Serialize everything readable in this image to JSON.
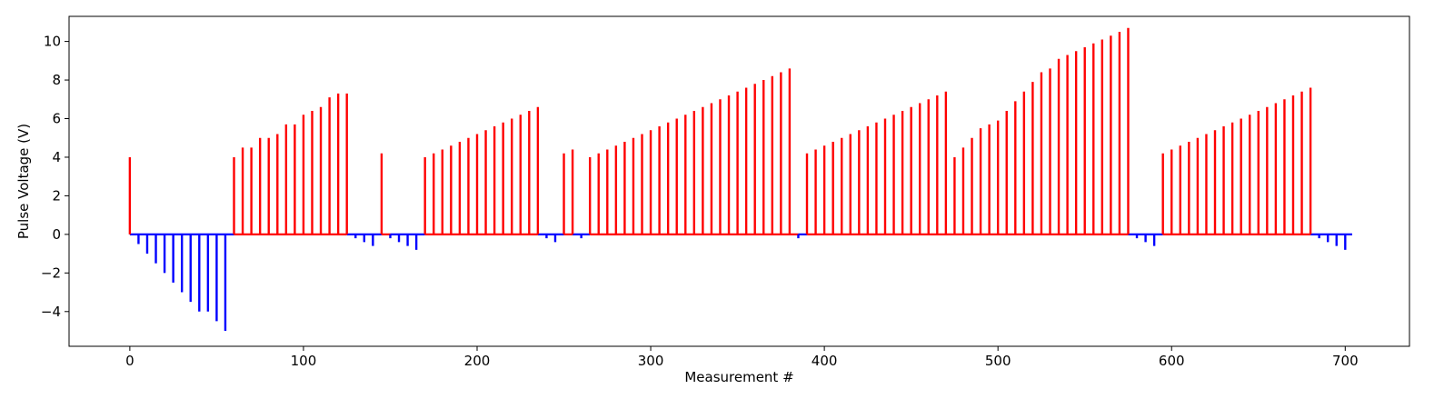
{
  "chart_data": {
    "type": "bar",
    "xlabel": "Measurement #",
    "ylabel": "Pulse Voltage (V)",
    "xlim": [
      -35,
      737
    ],
    "ylim": [
      -5.8,
      11.3
    ],
    "x_ticks": [
      0,
      100,
      200,
      300,
      400,
      500,
      600,
      700
    ],
    "y_ticks": [
      -4,
      -2,
      0,
      2,
      4,
      6,
      8,
      10
    ],
    "grid": false,
    "legend": "none",
    "colors": {
      "positive": "#ff0000",
      "negative": "#0000ff"
    },
    "series": [
      {
        "color": "#0000ff",
        "points": [
          [
            5,
            -0.5
          ],
          [
            10,
            -1.0
          ],
          [
            15,
            -1.5
          ],
          [
            20,
            -2.0
          ],
          [
            25,
            -2.5
          ],
          [
            30,
            -3.0
          ],
          [
            35,
            -3.5
          ],
          [
            40,
            -4.0
          ],
          [
            45,
            -4.0
          ],
          [
            50,
            -4.5
          ],
          [
            55,
            -5.0
          ],
          [
            130,
            -0.2
          ],
          [
            135,
            -0.4
          ],
          [
            140,
            -0.6
          ],
          [
            150,
            -0.2
          ],
          [
            155,
            -0.4
          ],
          [
            160,
            -0.6
          ],
          [
            165,
            -0.8
          ],
          [
            240,
            -0.2
          ],
          [
            245,
            -0.4
          ],
          [
            260,
            -0.2
          ],
          [
            385,
            -0.2
          ],
          [
            580,
            -0.2
          ],
          [
            585,
            -0.4
          ],
          [
            590,
            -0.6
          ],
          [
            685,
            -0.2
          ],
          [
            690,
            -0.4
          ],
          [
            695,
            -0.6
          ],
          [
            700,
            -0.8
          ]
        ]
      },
      {
        "color": "#ff0000",
        "points": [
          [
            0,
            4.0
          ],
          [
            60,
            4.0
          ],
          [
            65,
            4.5
          ],
          [
            70,
            4.5
          ],
          [
            75,
            5.0
          ],
          [
            80,
            5.0
          ],
          [
            85,
            5.2
          ],
          [
            90,
            5.7
          ],
          [
            95,
            5.7
          ],
          [
            100,
            6.2
          ],
          [
            105,
            6.4
          ],
          [
            110,
            6.6
          ],
          [
            115,
            7.1
          ],
          [
            120,
            7.3
          ],
          [
            125,
            7.3
          ],
          [
            145,
            4.2
          ],
          [
            170,
            4.0
          ],
          [
            175,
            4.2
          ],
          [
            180,
            4.4
          ],
          [
            185,
            4.6
          ],
          [
            190,
            4.8
          ],
          [
            195,
            5.0
          ],
          [
            200,
            5.2
          ],
          [
            205,
            5.4
          ],
          [
            210,
            5.6
          ],
          [
            215,
            5.8
          ],
          [
            220,
            6.0
          ],
          [
            225,
            6.2
          ],
          [
            230,
            6.4
          ],
          [
            235,
            6.6
          ],
          [
            250,
            4.2
          ],
          [
            255,
            4.4
          ],
          [
            265,
            4.0
          ],
          [
            270,
            4.2
          ],
          [
            275,
            4.4
          ],
          [
            280,
            4.6
          ],
          [
            285,
            4.8
          ],
          [
            290,
            5.0
          ],
          [
            295,
            5.2
          ],
          [
            300,
            5.4
          ],
          [
            305,
            5.6
          ],
          [
            310,
            5.8
          ],
          [
            315,
            6.0
          ],
          [
            320,
            6.2
          ],
          [
            325,
            6.4
          ],
          [
            330,
            6.6
          ],
          [
            335,
            6.8
          ],
          [
            340,
            7.0
          ],
          [
            345,
            7.2
          ],
          [
            350,
            7.4
          ],
          [
            355,
            7.6
          ],
          [
            360,
            7.8
          ],
          [
            365,
            8.0
          ],
          [
            370,
            8.2
          ],
          [
            375,
            8.4
          ],
          [
            380,
            8.6
          ],
          [
            390,
            4.2
          ],
          [
            395,
            4.4
          ],
          [
            400,
            4.6
          ],
          [
            405,
            4.8
          ],
          [
            410,
            5.0
          ],
          [
            415,
            5.2
          ],
          [
            420,
            5.4
          ],
          [
            425,
            5.6
          ],
          [
            430,
            5.8
          ],
          [
            435,
            6.0
          ],
          [
            440,
            6.2
          ],
          [
            445,
            6.4
          ],
          [
            450,
            6.6
          ],
          [
            455,
            6.8
          ],
          [
            460,
            7.0
          ],
          [
            465,
            7.2
          ],
          [
            470,
            7.4
          ],
          [
            475,
            4.0
          ],
          [
            480,
            4.5
          ],
          [
            485,
            5.0
          ],
          [
            490,
            5.5
          ],
          [
            495,
            5.7
          ],
          [
            500,
            5.9
          ],
          [
            505,
            6.4
          ],
          [
            510,
            6.9
          ],
          [
            515,
            7.4
          ],
          [
            520,
            7.9
          ],
          [
            525,
            8.4
          ],
          [
            530,
            8.6
          ],
          [
            535,
            9.1
          ],
          [
            540,
            9.3
          ],
          [
            545,
            9.5
          ],
          [
            550,
            9.7
          ],
          [
            555,
            9.9
          ],
          [
            560,
            10.1
          ],
          [
            565,
            10.3
          ],
          [
            570,
            10.5
          ],
          [
            575,
            10.7
          ],
          [
            595,
            4.2
          ],
          [
            600,
            4.4
          ],
          [
            605,
            4.6
          ],
          [
            610,
            4.8
          ],
          [
            615,
            5.0
          ],
          [
            620,
            5.2
          ],
          [
            625,
            5.4
          ],
          [
            630,
            5.6
          ],
          [
            635,
            5.8
          ],
          [
            640,
            6.0
          ],
          [
            645,
            6.2
          ],
          [
            650,
            6.4
          ],
          [
            655,
            6.6
          ],
          [
            660,
            6.8
          ],
          [
            665,
            7.0
          ],
          [
            670,
            7.2
          ],
          [
            675,
            7.4
          ],
          [
            680,
            7.6
          ]
        ]
      }
    ],
    "baseline": {
      "y": 0,
      "segments": [
        {
          "x": [
            0,
            60
          ],
          "color": "#0000ff"
        },
        {
          "x": [
            60,
            125
          ],
          "color": "#ff0000"
        },
        {
          "x": [
            125,
            145
          ],
          "color": "#0000ff"
        },
        {
          "x": [
            145,
            150
          ],
          "color": "#ff0000"
        },
        {
          "x": [
            150,
            170
          ],
          "color": "#0000ff"
        },
        {
          "x": [
            170,
            235
          ],
          "color": "#ff0000"
        },
        {
          "x": [
            235,
            250
          ],
          "color": "#0000ff"
        },
        {
          "x": [
            250,
            255
          ],
          "color": "#ff0000"
        },
        {
          "x": [
            255,
            265
          ],
          "color": "#0000ff"
        },
        {
          "x": [
            265,
            385
          ],
          "color": "#ff0000"
        },
        {
          "x": [
            385,
            390
          ],
          "color": "#0000ff"
        },
        {
          "x": [
            390,
            575
          ],
          "color": "#ff0000"
        },
        {
          "x": [
            575,
            595
          ],
          "color": "#0000ff"
        },
        {
          "x": [
            595,
            680
          ],
          "color": "#ff0000"
        },
        {
          "x": [
            680,
            704
          ],
          "color": "#0000ff"
        }
      ]
    }
  }
}
